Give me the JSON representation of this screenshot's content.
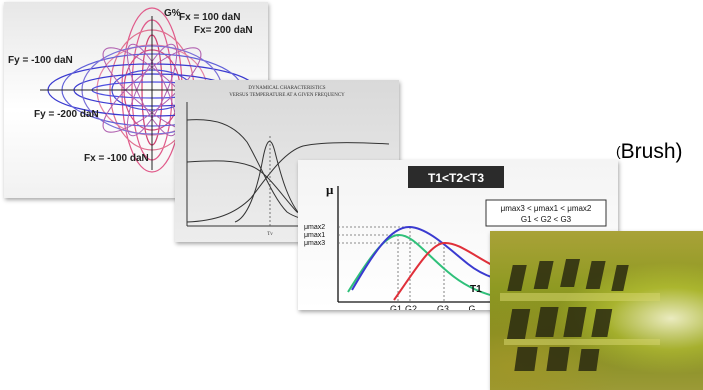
{
  "slides": {
    "ellipses": {
      "axis_label": "G%",
      "labels": [
        "Fx = 100 daN",
        "Fx= 200 daN",
        "Fy = -100 daN",
        "Fy = -200 daN",
        "Fx = -100 daN"
      ]
    },
    "temperature": {
      "title_line1": "DYNAMICAL CHARACTERISTICS",
      "title_line2": "VERSUS TEMPERATURE AT A GIVEN FREQUENCY",
      "x_marker": "Tv"
    },
    "mu": {
      "y_axis_label": "μ",
      "title": "T1<T2<T3",
      "box_line1": "μmax3 < μmax1 < μmax2",
      "box_line2": "G1 < G2 < G3",
      "y_levels": [
        "μmax2",
        "μmax1",
        "μmax3"
      ],
      "x_labels": [
        "G1",
        "G2",
        "G3",
        "G"
      ],
      "curve_label": "T1"
    }
  },
  "caption": {
    "paren": "(",
    "text": "Brush)"
  },
  "colors": {
    "red": "#e0303a",
    "blue": "#3a3ad0",
    "green": "#2fc07a",
    "pink": "#e05a8a"
  }
}
